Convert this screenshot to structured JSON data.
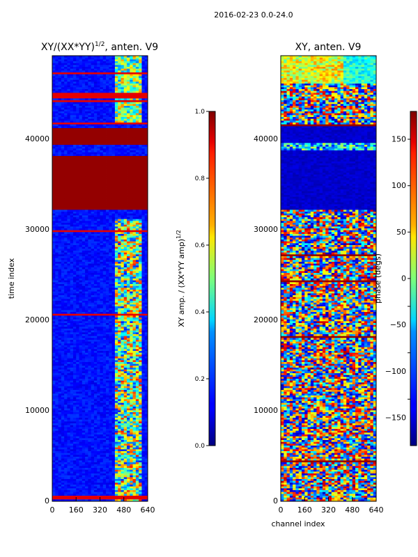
{
  "figure_title": "2016-02-23 0.0-24.0",
  "chart_data": [
    {
      "type": "heatmap",
      "title_main": "XY/(XX*YY)",
      "title_sup": "1/2",
      "title_rest": ", anten. V9",
      "xlabel": "",
      "ylabel": "time index",
      "xlim": [
        0,
        640
      ],
      "ylim": [
        0,
        49000
      ],
      "xticks": [
        0,
        160,
        320,
        480,
        640
      ],
      "xtick_labels": [
        "0",
        "160",
        "320",
        "480",
        "640"
      ],
      "yticks": [
        0,
        10000,
        20000,
        30000,
        40000
      ],
      "ytick_labels": [
        "0",
        "10000",
        "20000",
        "30000",
        "40000"
      ],
      "colormap": "jet",
      "colorbar": {
        "label_main": "XY amp. / (XX*YY amp)",
        "label_sup": "1/2",
        "range": [
          0.0,
          1.0
        ],
        "ticks": [
          0.0,
          0.2,
          0.4,
          0.6,
          0.8,
          1.0
        ],
        "tick_labels": [
          "0.0",
          "0.2",
          "0.4",
          "0.6",
          "0.8",
          "1.0"
        ]
      },
      "saturated_time_ranges": [
        [
          32000,
          38000
        ],
        [
          39300,
          41100
        ]
      ]
    },
    {
      "type": "heatmap",
      "title_main": "XY, anten. V9",
      "title_sup": "",
      "title_rest": "",
      "xlabel": "channel index",
      "ylabel": "",
      "xlim": [
        0,
        640
      ],
      "ylim": [
        0,
        49000
      ],
      "xticks": [
        0,
        160,
        320,
        480,
        640
      ],
      "xtick_labels": [
        "0",
        "160",
        "320",
        "480",
        "640"
      ],
      "yticks": [
        0,
        10000,
        20000,
        30000,
        40000
      ],
      "ytick_labels": [
        "0",
        "10000",
        "20000",
        "30000",
        "40000"
      ],
      "colormap": "jet",
      "colorbar": {
        "label_main": "phase (degs)",
        "label_sup": "",
        "range": [
          -180,
          180
        ],
        "ticks": [
          -150,
          -100,
          -50,
          0,
          50,
          100,
          150
        ],
        "tick_labels": [
          "−150",
          "−100",
          "−50",
          "0",
          "50",
          "100",
          "150"
        ]
      },
      "low_phase_time_ranges": [
        [
          32000,
          38500
        ],
        [
          39500,
          41200
        ]
      ]
    }
  ]
}
